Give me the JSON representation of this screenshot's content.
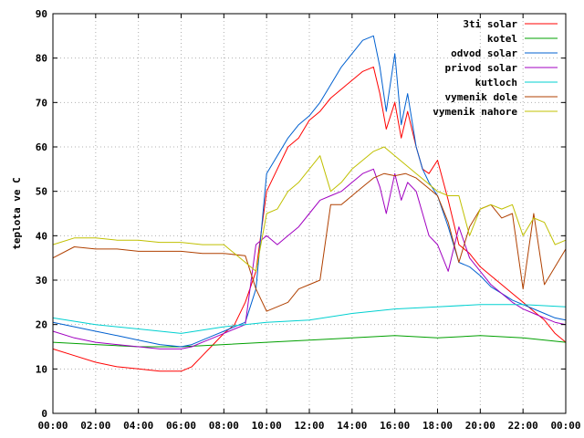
{
  "chart_data": {
    "type": "line",
    "title": "",
    "xlabel": "",
    "ylabel": "teplota ve C",
    "xlim": [
      0,
      24
    ],
    "ylim": [
      0,
      90
    ],
    "grid": true,
    "legend_position": "top-right",
    "x_ticks": [
      "00:00",
      "02:00",
      "04:00",
      "06:00",
      "08:00",
      "10:00",
      "12:00",
      "14:00",
      "16:00",
      "18:00",
      "20:00",
      "22:00",
      "00:00"
    ],
    "y_ticks": [
      0,
      10,
      20,
      30,
      40,
      50,
      60,
      70,
      80,
      90
    ],
    "series": [
      {
        "name": "3ti solar",
        "color": "#ff0000",
        "x": [
          0,
          1,
          2,
          3,
          4,
          5,
          6,
          6.5,
          7,
          7.5,
          8,
          8.5,
          9,
          9.5,
          10,
          10.5,
          11,
          11.5,
          12,
          12.5,
          13,
          13.5,
          14,
          14.5,
          15,
          15.3,
          15.6,
          16,
          16.3,
          16.6,
          17,
          17.3,
          17.6,
          18,
          18.5,
          19,
          19.5,
          20,
          20.5,
          21,
          21.5,
          22,
          22.5,
          23,
          23.5,
          24
        ],
        "values": [
          14.5,
          13,
          11.5,
          10.5,
          10,
          9.5,
          9.5,
          10.5,
          13,
          15.5,
          18,
          20,
          25,
          32,
          50,
          55,
          60,
          62,
          66,
          68,
          71,
          73,
          75,
          77,
          78,
          72,
          64,
          70,
          62,
          68,
          60,
          55,
          54,
          57,
          48,
          38,
          36,
          33,
          31,
          29,
          27,
          25,
          23,
          21,
          18,
          16
        ]
      },
      {
        "name": "kotel",
        "color": "#00a000",
        "x": [
          0,
          2,
          4,
          6,
          8,
          10,
          12,
          14,
          16,
          18,
          20,
          22,
          24
        ],
        "values": [
          16,
          15.5,
          15,
          15,
          15.5,
          16,
          16.5,
          17,
          17.5,
          17,
          17.5,
          17,
          16
        ]
      },
      {
        "name": "odvod solar",
        "color": "#0060d0",
        "x": [
          0,
          1,
          2,
          3,
          4,
          5,
          6,
          6.5,
          7,
          7.5,
          8,
          8.5,
          9,
          9.5,
          10,
          10.5,
          11,
          11.5,
          12,
          12.5,
          13,
          13.5,
          14,
          14.5,
          15,
          15.3,
          15.6,
          16,
          16.3,
          16.6,
          17,
          17.3,
          17.6,
          18,
          18.5,
          19,
          19.5,
          20,
          20.5,
          21,
          21.5,
          22,
          22.5,
          23,
          23.5,
          24
        ],
        "values": [
          20.5,
          19.5,
          18.5,
          17.5,
          16.5,
          15.5,
          15,
          15.5,
          16.5,
          17.5,
          18.5,
          19.5,
          20.5,
          28,
          54,
          58,
          62,
          65,
          67,
          70,
          74,
          78,
          81,
          84,
          85,
          78,
          68,
          81,
          65,
          72,
          60,
          55,
          52,
          49,
          42,
          34,
          33,
          31,
          28.5,
          27,
          25.5,
          24.5,
          23.5,
          22.5,
          21.5,
          21
        ]
      },
      {
        "name": "privod solar",
        "color": "#a000c0",
        "x": [
          0,
          1,
          2,
          3,
          4,
          5,
          6,
          6.5,
          7,
          7.5,
          8,
          8.5,
          9,
          9.5,
          10,
          10.5,
          11,
          11.5,
          12,
          12.5,
          13,
          13.5,
          14,
          14.5,
          15,
          15.3,
          15.6,
          16,
          16.3,
          16.6,
          17,
          17.3,
          17.6,
          18,
          18.5,
          19,
          19.5,
          20,
          20.5,
          21,
          21.5,
          22,
          22.5,
          23,
          23.5,
          24
        ],
        "values": [
          18.5,
          17,
          16,
          15.5,
          15,
          14.5,
          14.5,
          15,
          16,
          17,
          18,
          19,
          20,
          38,
          40,
          38,
          40,
          42,
          45,
          48,
          49,
          50,
          52,
          54,
          55,
          51,
          45,
          54,
          48,
          52,
          50,
          45,
          40,
          38,
          32,
          42,
          35,
          32,
          29,
          27,
          25,
          23.5,
          22.5,
          21.5,
          20.5,
          20
        ]
      },
      {
        "name": "kutloch",
        "color": "#00d0d0",
        "x": [
          0,
          2,
          4,
          6,
          8,
          10,
          12,
          14,
          16,
          18,
          20,
          22,
          24
        ],
        "values": [
          21.5,
          20,
          19,
          18,
          19.5,
          20.5,
          21,
          22.5,
          23.5,
          24,
          24.5,
          24.5,
          24
        ]
      },
      {
        "name": "vymenik dole",
        "color": "#b04000",
        "x": [
          0,
          1,
          2,
          3,
          4,
          5,
          6,
          7,
          8,
          9,
          9.5,
          10,
          10.5,
          11,
          11.5,
          12,
          12.5,
          13,
          13.5,
          14,
          14.5,
          15,
          15.5,
          16,
          16.5,
          17,
          17.5,
          18,
          18.5,
          19,
          19.5,
          20,
          20.5,
          21,
          21.5,
          22,
          22.5,
          23,
          23.5,
          24
        ],
        "values": [
          35,
          37.5,
          37,
          37,
          36.5,
          36.5,
          36.5,
          36,
          36,
          35.5,
          28,
          23,
          24,
          25,
          28,
          29,
          30,
          47,
          47,
          49,
          51,
          53,
          54,
          53.5,
          54,
          53,
          51,
          49,
          43,
          34,
          42,
          46,
          47,
          44,
          45,
          28,
          45,
          29,
          33,
          37
        ]
      },
      {
        "name": "vymenik nahore",
        "color": "#c0c000",
        "x": [
          0,
          1,
          2,
          3,
          4,
          5,
          6,
          7,
          8,
          9,
          9.5,
          10,
          10.5,
          11,
          11.5,
          12,
          12.5,
          13,
          13.5,
          14,
          14.5,
          15,
          15.5,
          16,
          16.5,
          17,
          17.5,
          18,
          18.5,
          19,
          19.5,
          20,
          20.5,
          21,
          21.5,
          22,
          22.5,
          23,
          23.5,
          24
        ],
        "values": [
          38,
          39.5,
          39.5,
          39,
          39,
          38.5,
          38.5,
          38,
          38,
          34,
          32,
          45,
          46,
          50,
          52,
          55,
          58,
          50,
          52,
          55,
          57,
          59,
          60,
          58,
          56,
          54,
          52,
          50,
          49,
          49,
          40,
          46,
          47,
          46,
          47,
          40,
          44,
          43,
          38,
          39
        ]
      }
    ]
  }
}
